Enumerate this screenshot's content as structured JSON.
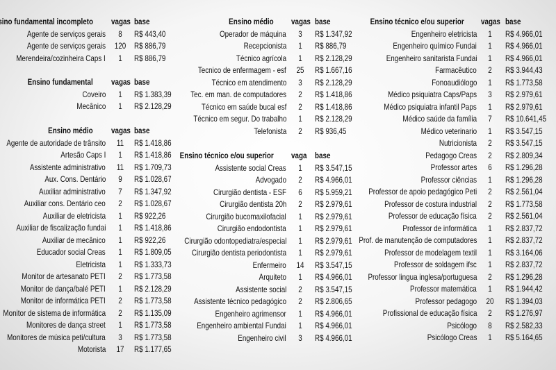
{
  "columns": [
    {
      "sections": [
        {
          "header": {
            "title": "Ensino fundamental incompleto",
            "vagas": "vagas",
            "base": "base"
          },
          "rows": [
            [
              "Agente de serviços gerais",
              8,
              "R$ 443,40"
            ],
            [
              "Agente de serviços gerais",
              120,
              "R$ 886,79"
            ],
            [
              "Merendeira/cozinheira Caps I",
              1,
              "R$ 886,79"
            ]
          ]
        },
        {
          "header": {
            "title": "Ensino fundamental",
            "vagas": "vagas",
            "base": "base"
          },
          "rows": [
            [
              "Coveiro",
              1,
              "R$ 1.383,39"
            ],
            [
              "Mecânico",
              1,
              "R$ 2.128,29"
            ]
          ]
        },
        {
          "header": {
            "title": "Ensino médio",
            "vagas": "vagas",
            "base": "base"
          },
          "rows": [
            [
              "Agente de autoridade de trânsito",
              11,
              "R$ 1.418,86"
            ],
            [
              "Artesão Caps I",
              1,
              "R$ 1.418,86"
            ],
            [
              "Assistente administrativo",
              11,
              "R$ 1.709,73"
            ],
            [
              "Aux. Cons. Dentário",
              9,
              "R$ 1.028,67"
            ],
            [
              "Auxiliar administrativo",
              7,
              "R$ 1.347,92"
            ],
            [
              "Auxiliar cons. Dentário ceo",
              2,
              "R$ 1.028,67"
            ],
            [
              "Auxiliar de eletricista",
              1,
              "R$ 922,26"
            ],
            [
              "Auxiliar de fiscalização fundai",
              1,
              "R$ 1.418,86"
            ],
            [
              "Auxiliar de mecânico",
              1,
              "R$ 922,26"
            ],
            [
              "Educador social Creas",
              1,
              "R$ 1.809,05"
            ],
            [
              "Eletricista",
              1,
              "R$ 1.333,73"
            ],
            [
              "Monitor de artesanato PETI",
              2,
              "R$ 1.773,58"
            ],
            [
              "Monitor de dança/balé PETI",
              1,
              "R$ 2.128,29"
            ],
            [
              "Monitor de informática PETI",
              2,
              "R$ 1.773,58"
            ],
            [
              "Monitor de sistema de informática",
              2,
              "R$ 1.135,09"
            ],
            [
              "Monitores de dança street",
              1,
              "R$ 1.773,58"
            ],
            [
              "Monitores de música peti/cultura",
              3,
              "R$ 1.773,58"
            ],
            [
              "Motorista",
              17,
              "R$ 1.177,65"
            ]
          ]
        }
      ]
    },
    {
      "sections": [
        {
          "header": {
            "title": "Ensino médio",
            "vagas": "vagas",
            "base": "base"
          },
          "rows": [
            [
              "Operador de máquina",
              3,
              "R$ 1.347,92"
            ],
            [
              "Recepcionista",
              1,
              "R$ 886,79"
            ],
            [
              "Técnico agrícola",
              1,
              "R$ 2.128,29"
            ],
            [
              "Tecnico de enfermagem - esf",
              25,
              "R$ 1.667,16"
            ],
            [
              "Técnico em atendimento",
              3,
              "R$ 2.128,29"
            ],
            [
              "Tec. em man. de computadores",
              2,
              "R$ 1.418,86"
            ],
            [
              "Técnico em saúde bucal esf",
              2,
              "R$ 1.418,86"
            ],
            [
              "Técnico em segur. Do trabalho",
              1,
              "R$ 2.128,29"
            ],
            [
              "Telefonista",
              2,
              "R$ 936,45"
            ]
          ]
        },
        {
          "header": {
            "title": "Ensino técnico e/ou superior",
            "vagas": "vaga",
            "base": "base"
          },
          "rows": [
            [
              "Assistente social Creas",
              1,
              "R$ 3.547,15"
            ],
            [
              "Advogado",
              2,
              "R$ 4.966,01"
            ],
            [
              "Cirurgião dentista - ESF",
              6,
              "R$ 5.959,21"
            ],
            [
              "Cirurgião dentista 20h",
              2,
              "R$ 2.979,61"
            ],
            [
              "Cirurgião bucomaxilofacial",
              1,
              "R$ 2.979,61"
            ],
            [
              "Cirurgião endodontista",
              1,
              "R$ 2.979,61"
            ],
            [
              "Cirurgião odontopediatra/especial",
              1,
              "R$ 2.979,61"
            ],
            [
              "Cirurgião dentista periodontista",
              1,
              "R$ 2.979,61"
            ],
            [
              "Enfermeiro",
              14,
              "R$ 3.547,15"
            ],
            [
              "Arquiteto",
              1,
              "R$ 4.966,01"
            ],
            [
              "Assistente social",
              2,
              "R$ 3.547,15"
            ],
            [
              "Assistente técnico pedagógico",
              2,
              "R$ 2.806,65"
            ],
            [
              "Engenheiro agrimensor",
              1,
              "R$ 4.966,01"
            ],
            [
              "Engenheiro ambiental Fundai",
              1,
              "R$ 4.966,01"
            ],
            [
              "Engenheiro civil",
              3,
              "R$ 4.966,01"
            ]
          ]
        }
      ]
    },
    {
      "sections": [
        {
          "header": {
            "title": "Ensino técnico e/ou superior",
            "vagas": "vagas",
            "base": "base"
          },
          "rows": [
            [
              "Engenheiro eletricista",
              1,
              "R$ 4.966,01"
            ],
            [
              "Engenheiro químico Fundai",
              1,
              "R$ 4.966,01"
            ],
            [
              "Engenheiro sanitarista Fundai",
              1,
              "R$ 4.966,01"
            ],
            [
              "Farmacêutico",
              2,
              "R$ 3.944,43"
            ],
            [
              "Fonoaudiólogo",
              1,
              "R$ 1.773,58"
            ],
            [
              "Médico psiquiatra Caps/Paps",
              3,
              "R$ 2.979,61"
            ],
            [
              "Médico psiquiatra infantil Paps",
              1,
              "R$ 2.979,61"
            ],
            [
              "Médico saúde da família",
              7,
              "R$ 10.641,45"
            ],
            [
              "Médico veterinario",
              1,
              "R$ 3.547,15"
            ],
            [
              "Nutricionista",
              2,
              "R$ 3.547,15"
            ],
            [
              "Pedagogo Creas",
              2,
              "R$ 2.809,34"
            ],
            [
              "Professor artes",
              6,
              "R$ 1.296,28"
            ],
            [
              "Professor ciências",
              1,
              "R$ 1.296,28"
            ],
            [
              "Professor de apoio pedagógico Peti",
              2,
              "R$ 2.561,04"
            ],
            [
              "Professor de costura industrial",
              2,
              "R$ 1.773,58"
            ],
            [
              "Professor de educação física",
              2,
              "R$ 2.561,04"
            ],
            [
              "Professor de informática",
              1,
              "R$ 2.837,72"
            ],
            [
              "Prof. de manutenção de computadores",
              1,
              "R$ 2.837,72"
            ],
            [
              "Professor de modelagem textil",
              1,
              "R$ 3.164,06"
            ],
            [
              "Professor de soldagem ifsc",
              1,
              "R$ 2.837,72"
            ],
            [
              "Professor lingua inglesa/portuguesa",
              2,
              "R$ 1.296,28"
            ],
            [
              "Professor matemática",
              1,
              "R$ 1.944,42"
            ],
            [
              "Professor pedagogo",
              20,
              "R$ 1.394,03"
            ],
            [
              "Profissional de educação física",
              2,
              "R$ 1.276,97"
            ],
            [
              "Psicólogo",
              8,
              "R$ 2.582,33"
            ],
            [
              "Psicólogo Creas",
              1,
              "R$ 5.164,65"
            ]
          ]
        }
      ]
    }
  ]
}
